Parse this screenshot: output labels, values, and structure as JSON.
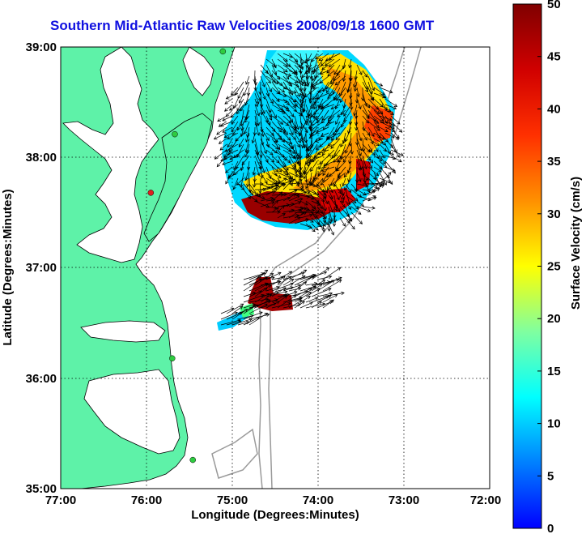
{
  "title": "Southern Mid-Atlantic Raw Velocities 2008/09/18 1600 GMT",
  "map": {
    "xlabel": "Longitude (Degrees:Minutes)",
    "ylabel": "Latitude (Degrees:Minutes)",
    "x_ticks": [
      "77:00",
      "76:00",
      "75:00",
      "74:00",
      "73:00",
      "72:00"
    ],
    "y_ticks": [
      "39:00",
      "38:00",
      "37:00",
      "36:00",
      "35:00"
    ],
    "lon_range": [
      -77,
      -72
    ],
    "lat_range": [
      35,
      39
    ],
    "land_color": "#5ef2a8",
    "grid": true
  },
  "colorbar": {
    "label": "Surface Velocity (cm/s)",
    "ticks": [
      "0",
      "5",
      "10",
      "15",
      "20",
      "25",
      "30",
      "35",
      "40",
      "45",
      "50"
    ],
    "range": [
      0,
      50
    ],
    "colormap": "jet"
  },
  "stations": [
    {
      "lon": -75.11,
      "lat": 38.96,
      "color": "#2ecc40"
    },
    {
      "lon": -75.67,
      "lat": 38.21,
      "color": "#2ecc40"
    },
    {
      "lon": -75.95,
      "lat": 37.68,
      "color": "#e02020"
    },
    {
      "lon": -75.7,
      "lat": 36.18,
      "color": "#2ecc40"
    },
    {
      "lon": -75.46,
      "lat": 35.26,
      "color": "#2ecc40"
    }
  ]
}
